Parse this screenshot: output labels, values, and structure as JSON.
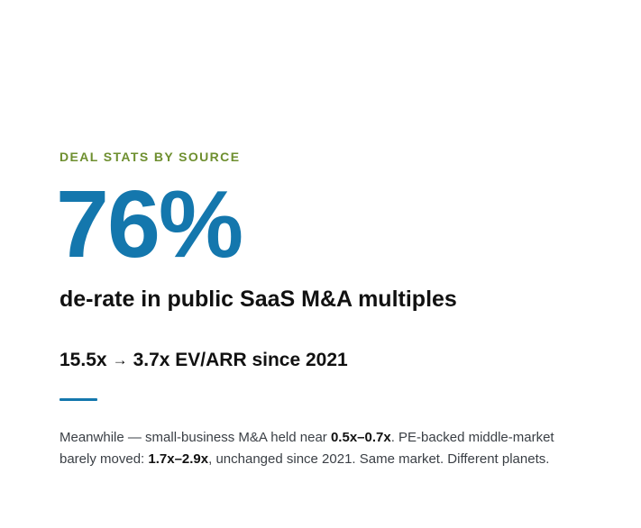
{
  "section": {
    "eyebrow": "DEAL STATS BY SOURCE",
    "accent_color": "#6e8f2f"
  },
  "headline_stat": {
    "value": "76%",
    "color": "#1477ad",
    "caption": "de-rate in public SaaS M&A multiples"
  },
  "multiple_change": {
    "from": "15.5x",
    "arrow": "→",
    "to_text": "3.7x EV/ARR since 2021"
  },
  "divider": {
    "color": "#1477ad"
  },
  "paragraph": {
    "part1": "Meanwhile — small-business M&A held near ",
    "bold1": "0.5x–0.7x",
    "part2": ". PE-backed middle-market barely moved: ",
    "bold2": "1.7x–2.9x",
    "part3": ", unchanged since 2021. Same market. Different planets."
  }
}
